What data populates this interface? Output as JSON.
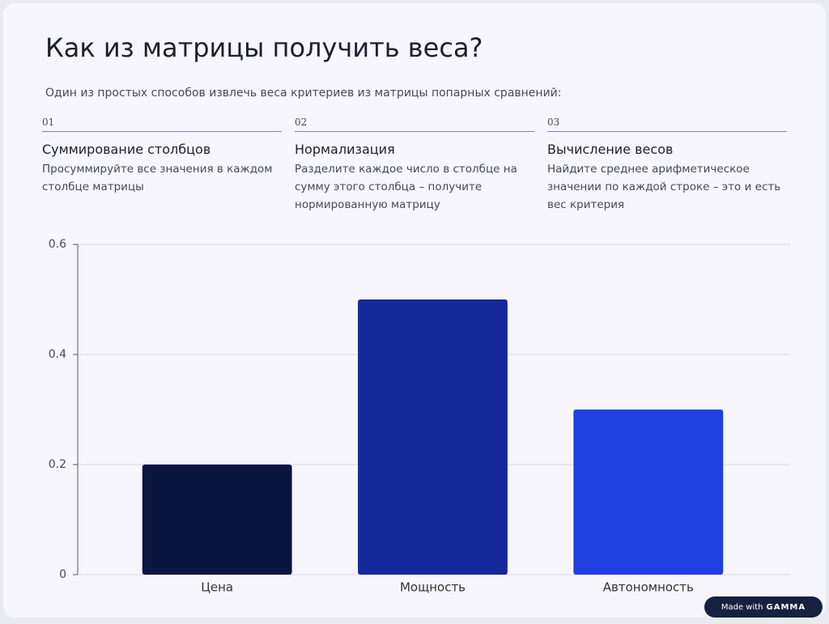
{
  "header": {
    "title": "Как из матрицы получить веса?",
    "subtitle": "Один из простых способов извлечь веса критериев из матрицы попарных сравнений:"
  },
  "steps": [
    {
      "number": "01",
      "heading": "Суммирование столбцов",
      "text": "Просуммируйте все значения в каждом столбце матрицы"
    },
    {
      "number": "02",
      "heading": "Нормализация",
      "text": "Разделите каждое число в столбце на сумму этого столбца – получите нормированную матрицу"
    },
    {
      "number": "03",
      "heading": "Вычисление весов",
      "text": "Найдите среднее арифметическое значении по каждой строке – это и есть вес критерия"
    }
  ],
  "chart_data": {
    "type": "bar",
    "categories": [
      "Цена",
      "Мощность",
      "Автономность"
    ],
    "values": [
      0.2,
      0.5,
      0.3
    ],
    "colors": [
      "#0b1640",
      "#14289a",
      "#1f3fe0"
    ],
    "ylim": [
      0,
      0.6
    ],
    "yticks": [
      0,
      0.2,
      0.4,
      0.6
    ],
    "grid": true
  },
  "badge": {
    "prefix": "Made with",
    "brand": "GAMMA"
  }
}
